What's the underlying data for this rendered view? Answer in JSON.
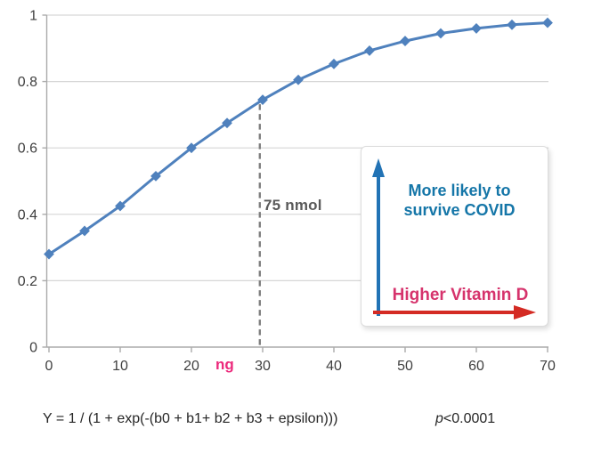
{
  "chart_data": {
    "type": "line",
    "series": [
      {
        "name": "probability-of-surviving-covid-vs-vitamin-d",
        "x": [
          0,
          5,
          10,
          15,
          20,
          25,
          30,
          35,
          40,
          45,
          50,
          55,
          60,
          65,
          70
        ],
        "values": [
          0.28,
          0.35,
          0.425,
          0.515,
          0.6,
          0.675,
          0.745,
          0.805,
          0.853,
          0.893,
          0.922,
          0.945,
          0.96,
          0.971,
          0.977
        ]
      }
    ],
    "xlim": [
      0,
      70
    ],
    "ylim": [
      0,
      1
    ],
    "x_ticks": [
      0,
      10,
      20,
      30,
      40,
      50,
      60,
      70
    ],
    "x_tick_labels": [
      "0",
      "10",
      "20",
      "30",
      "40",
      "50",
      "60",
      "70"
    ],
    "y_ticks": [
      0,
      0.2,
      0.4,
      0.6,
      0.8,
      1
    ],
    "y_tick_labels": [
      "0",
      "0.2",
      "0.4",
      "0.6",
      "0.8",
      "1"
    ],
    "x_unit_label": "ng",
    "reference_line": {
      "x": 29.6,
      "label": "75 nmol"
    },
    "grid": true,
    "legend": false,
    "marker": "diamond"
  },
  "annotation_box": {
    "up_arrow_label": "More likely to survive COVID",
    "right_arrow_label": "Higher Vitamin D"
  },
  "footer": {
    "formula": "Y = 1 / (1 + exp(-(b0 + b1+ b2 + b3 + epsilon)))",
    "p_italic": "p",
    "p_rest": "<0.0001"
  },
  "colors": {
    "line": "#4F81BD",
    "grid": "#D6D6D6",
    "axis": "#ABABAB",
    "tick_labels": "#3F3F3F",
    "dashed_reference": "#7F7F7F",
    "reference_label": "#595959",
    "x_unit": "#EC2A7C",
    "blue_arrow": "#2273B5",
    "blue_text": "#1576A8",
    "red_arrow": "#D42B24",
    "pink_text": "#D6336C",
    "formula_text": "#262626"
  }
}
